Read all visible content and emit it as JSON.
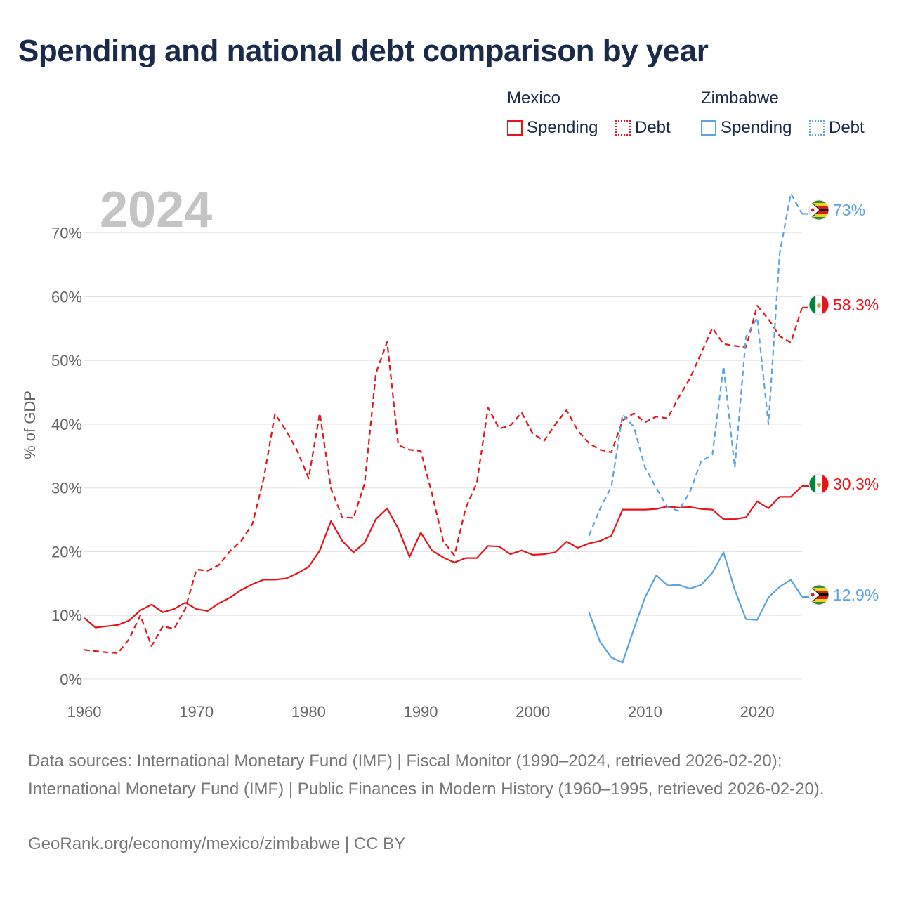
{
  "title": "Spending and national debt comparison by year",
  "year_label": "2024",
  "legend": {
    "groups": [
      {
        "country": "Mexico",
        "items": [
          {
            "label": "Spending",
            "style": "solid",
            "color": "#e8141b"
          },
          {
            "label": "Debt",
            "style": "dotted",
            "color": "#e8141b"
          }
        ]
      },
      {
        "country": "Zimbabwe",
        "items": [
          {
            "label": "Spending",
            "style": "solid",
            "color": "#5ba4e0"
          },
          {
            "label": "Debt",
            "style": "dotted",
            "color": "#5ba4e0"
          }
        ]
      }
    ]
  },
  "chart_data": {
    "type": "line",
    "title": "Spending and national debt comparison by year",
    "xlabel": "",
    "ylabel": "% of GDP",
    "xlim": [
      1960,
      2024
    ],
    "ylim": [
      0,
      75
    ],
    "x_ticks": [
      1960,
      1970,
      1980,
      1990,
      2000,
      2010,
      2020
    ],
    "y_ticks": [
      0,
      10,
      20,
      30,
      40,
      50,
      60,
      70
    ],
    "y_tick_labels": [
      "0%",
      "10%",
      "20%",
      "30%",
      "40%",
      "50%",
      "60%",
      "70%"
    ],
    "grid": true,
    "series": [
      {
        "name": "Mexico Spending",
        "country": "Mexico",
        "metric": "Spending",
        "color": "#e8141b",
        "dash": "solid",
        "end_label": "30.3%",
        "x": [
          1960,
          1961,
          1962,
          1963,
          1964,
          1965,
          1966,
          1967,
          1968,
          1969,
          1970,
          1971,
          1972,
          1973,
          1974,
          1975,
          1976,
          1977,
          1978,
          1979,
          1980,
          1981,
          1982,
          1983,
          1984,
          1985,
          1986,
          1987,
          1988,
          1989,
          1990,
          1991,
          1992,
          1993,
          1994,
          1995,
          1996,
          1997,
          1998,
          1999,
          2000,
          2001,
          2002,
          2003,
          2004,
          2005,
          2006,
          2007,
          2008,
          2009,
          2010,
          2011,
          2012,
          2013,
          2014,
          2015,
          2016,
          2017,
          2018,
          2019,
          2020,
          2021,
          2022,
          2023,
          2024
        ],
        "values": [
          9.6,
          8.1,
          8.3,
          8.5,
          9.2,
          10.8,
          11.7,
          10.5,
          11.0,
          12.0,
          11.0,
          10.7,
          11.9,
          12.8,
          14.0,
          14.9,
          15.6,
          15.6,
          15.8,
          16.6,
          17.6,
          20.2,
          24.8,
          21.7,
          19.9,
          21.4,
          25.1,
          26.8,
          23.6,
          19.2,
          23.0,
          20.2,
          19.1,
          18.3,
          19.0,
          19.0,
          20.9,
          20.8,
          19.6,
          20.2,
          19.5,
          19.6,
          19.9,
          21.6,
          20.6,
          21.3,
          21.7,
          22.5,
          26.6,
          26.6,
          26.6,
          26.7,
          27.1,
          26.9,
          27.0,
          26.7,
          26.6,
          25.1,
          25.1,
          25.4,
          27.9,
          26.8,
          28.6,
          28.6,
          30.3
        ]
      },
      {
        "name": "Mexico Debt",
        "country": "Mexico",
        "metric": "Debt",
        "color": "#e8141b",
        "dash": "dashed",
        "end_label": "58.3%",
        "x": [
          1960,
          1961,
          1962,
          1963,
          1964,
          1965,
          1966,
          1967,
          1968,
          1969,
          1970,
          1971,
          1972,
          1973,
          1974,
          1975,
          1976,
          1977,
          1978,
          1979,
          1980,
          1981,
          1982,
          1983,
          1984,
          1985,
          1986,
          1987,
          1988,
          1989,
          1990,
          1991,
          1992,
          1993,
          1994,
          1995,
          1996,
          1997,
          1998,
          1999,
          2000,
          2001,
          2002,
          2003,
          2004,
          2005,
          2006,
          2007,
          2008,
          2009,
          2010,
          2011,
          2012,
          2013,
          2014,
          2015,
          2016,
          2017,
          2018,
          2019,
          2020,
          2021,
          2022,
          2023,
          2024
        ],
        "values": [
          4.6,
          4.4,
          4.2,
          4.1,
          6.3,
          10.0,
          5.2,
          8.3,
          7.9,
          11.0,
          17.2,
          17.0,
          17.9,
          20.1,
          21.7,
          24.4,
          31.5,
          41.6,
          39.0,
          35.8,
          31.5,
          41.7,
          29.9,
          25.4,
          25.3,
          30.7,
          48.0,
          52.9,
          36.7,
          36.0,
          35.8,
          29.1,
          21.7,
          19.4,
          26.8,
          30.8,
          42.6,
          39.3,
          39.8,
          41.8,
          38.5,
          37.4,
          40.0,
          42.2,
          39.0,
          37.0,
          36.0,
          35.6,
          40.6,
          41.7,
          40.3,
          41.2,
          40.9,
          44.2,
          47.2,
          51.1,
          55.1,
          52.6,
          52.3,
          52.1,
          58.6,
          56.5,
          53.8,
          52.8,
          58.3
        ]
      },
      {
        "name": "Zimbabwe Spending",
        "country": "Zimbabwe",
        "metric": "Spending",
        "color": "#5ba4e0",
        "dash": "solid",
        "end_label": "12.9%",
        "x": [
          2005,
          2006,
          2007,
          2008,
          2009,
          2010,
          2011,
          2012,
          2013,
          2014,
          2015,
          2016,
          2017,
          2018,
          2019,
          2020,
          2021,
          2022,
          2023,
          2024
        ],
        "values": [
          10.5,
          5.8,
          3.4,
          2.6,
          7.9,
          12.8,
          16.3,
          14.7,
          14.8,
          14.2,
          14.8,
          16.7,
          19.9,
          14.0,
          9.4,
          9.3,
          12.8,
          14.5,
          15.6,
          12.9
        ]
      },
      {
        "name": "Zimbabwe Debt",
        "country": "Zimbabwe",
        "metric": "Debt",
        "color": "#5ba4e0",
        "dash": "dashed",
        "end_label": "73%",
        "x": [
          2005,
          2006,
          2007,
          2008,
          2009,
          2010,
          2011,
          2012,
          2013,
          2014,
          2015,
          2016,
          2017,
          2018,
          2019,
          2020,
          2021,
          2022,
          2023,
          2024
        ],
        "values": [
          22.5,
          26.8,
          30.2,
          41.5,
          39.6,
          33.2,
          30.0,
          27.0,
          26.4,
          29.4,
          34.2,
          35.2,
          49.1,
          33.2,
          53.7,
          56.7,
          40.0,
          66.8,
          76.2,
          73.0
        ]
      }
    ]
  },
  "footer": {
    "sources": "Data sources: International Monetary Fund (IMF) | Fiscal Monitor (1990–2024, retrieved 2026-02-20); International Monetary Fund (IMF) | Public Finances in Modern History (1960–1995, retrieved 2026-02-20).",
    "credit": "GeoRank.org/economy/mexico/zimbabwe | CC BY"
  }
}
